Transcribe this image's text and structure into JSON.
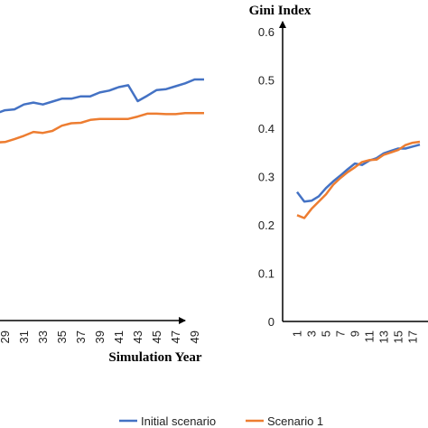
{
  "chart_data": [
    {
      "type": "line",
      "title": "",
      "xlabel": "Simulation Year",
      "ylabel": "",
      "x_tick_labels": [
        "29",
        "31",
        "33",
        "35",
        "37",
        "39",
        "41",
        "43",
        "45",
        "47",
        "49"
      ],
      "x": [
        28,
        29,
        30,
        31,
        32,
        33,
        34,
        35,
        36,
        37,
        38,
        39,
        40,
        41,
        42,
        43,
        44,
        45,
        46,
        47,
        48,
        49,
        50
      ],
      "series": [
        {
          "name": "Initial scenario",
          "color": "#4472C4",
          "values": [
            0.474,
            0.481,
            0.483,
            0.493,
            0.497,
            0.493,
            0.499,
            0.505,
            0.505,
            0.51,
            0.51,
            0.518,
            0.522,
            0.529,
            0.533,
            0.5,
            0.511,
            0.523,
            0.525,
            0.531,
            0.537,
            0.545,
            0.545
          ]
        },
        {
          "name": "Scenario 1",
          "color": "#ED7D31",
          "values": [
            0.414,
            0.415,
            0.421,
            0.428,
            0.436,
            0.434,
            0.438,
            0.449,
            0.454,
            0.455,
            0.461,
            0.463,
            0.463,
            0.463,
            0.463,
            0.468,
            0.474,
            0.474,
            0.473,
            0.473,
            0.475,
            0.475,
            0.475
          ]
        }
      ]
    },
    {
      "type": "line",
      "title": "Gini Index",
      "xlabel": "",
      "ylabel": "",
      "x_tick_labels": [
        "1",
        "3",
        "5",
        "7",
        "9",
        "11",
        "13",
        "15",
        "17"
      ],
      "y_tick_labels": [
        "0",
        "0.1",
        "0.2",
        "0.3",
        "0.4",
        "0.5",
        "0.6"
      ],
      "ylim": [
        0,
        0.6
      ],
      "x": [
        1,
        2,
        3,
        4,
        5,
        6,
        7,
        8,
        9,
        10,
        11,
        12,
        13,
        14,
        15,
        16,
        17,
        18
      ],
      "series": [
        {
          "name": "Initial scenario",
          "color": "#4472C4",
          "values": [
            0.268,
            0.248,
            0.25,
            0.259,
            0.276,
            0.29,
            0.302,
            0.315,
            0.327,
            0.324,
            0.333,
            0.338,
            0.348,
            0.353,
            0.358,
            0.358,
            0.362,
            0.366
          ]
        },
        {
          "name": "Scenario 1",
          "color": "#ED7D31",
          "values": [
            0.22,
            0.214,
            0.233,
            0.248,
            0.263,
            0.283,
            0.297,
            0.309,
            0.319,
            0.33,
            0.334,
            0.335,
            0.345,
            0.35,
            0.355,
            0.365,
            0.37,
            0.372
          ]
        }
      ]
    }
  ],
  "legend": {
    "items": [
      {
        "label": "Initial scenario",
        "color": "#4472C4"
      },
      {
        "label": "Scenario 1",
        "color": "#ED7D31"
      }
    ]
  }
}
